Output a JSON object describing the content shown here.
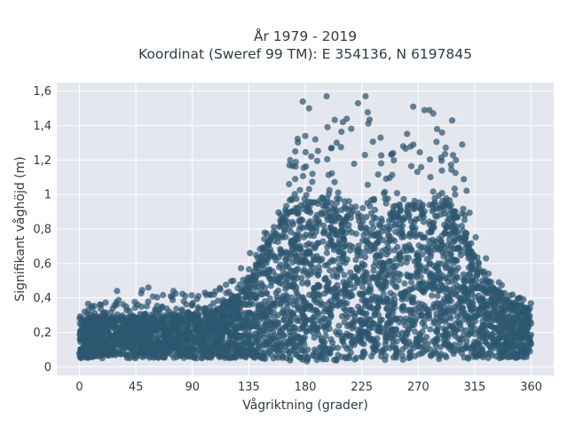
{
  "chart_data": {
    "type": "scatter",
    "title_line1": "År 1979 - 2019",
    "title_line2": "Koordinat (Sweref 99 TM): E 354136, N 6197845",
    "xlabel": "Vågriktning (grader)",
    "ylabel": "Signifikant våghöjd (m)",
    "xlim": [
      -18,
      378
    ],
    "ylim": [
      -0.05,
      1.65
    ],
    "x_ticks": [
      0,
      45,
      90,
      135,
      180,
      225,
      270,
      315,
      360
    ],
    "x_tick_labels": [
      "0",
      "45",
      "90",
      "135",
      "180",
      "225",
      "270",
      "315",
      "360"
    ],
    "y_ticks": [
      0,
      0.2,
      0.4,
      0.6,
      0.8,
      1.0,
      1.2,
      1.4,
      1.6
    ],
    "y_tick_labels": [
      "0",
      "0,2",
      "0,4",
      "0,6",
      "0,8",
      "1",
      "1,2",
      "1,4",
      "1,6"
    ],
    "grid": true,
    "marker_color": "#2e5870",
    "plot_background": "#e5e7ef",
    "envelope": {
      "direction": [
        0,
        20,
        45,
        60,
        90,
        110,
        125,
        135,
        150,
        165,
        180,
        195,
        210,
        225,
        240,
        255,
        270,
        285,
        300,
        315,
        330,
        345,
        360
      ],
      "lower": [
        0.05,
        0.05,
        0.05,
        0.05,
        0.05,
        0.05,
        0.05,
        0.05,
        0.04,
        0.03,
        0.03,
        0.03,
        0.04,
        0.04,
        0.04,
        0.04,
        0.04,
        0.04,
        0.04,
        0.05,
        0.05,
        0.05,
        0.06
      ],
      "dense_upper": [
        0.28,
        0.28,
        0.29,
        0.29,
        0.3,
        0.33,
        0.4,
        0.5,
        0.7,
        0.88,
        0.95,
        0.96,
        0.93,
        0.88,
        0.87,
        0.9,
        0.95,
        0.98,
        0.88,
        0.62,
        0.45,
        0.36,
        0.34
      ],
      "max": [
        0.36,
        0.38,
        0.45,
        0.46,
        0.42,
        0.45,
        0.52,
        0.67,
        0.82,
        1.2,
        1.54,
        1.57,
        1.42,
        1.57,
        1.36,
        1.4,
        1.51,
        1.38,
        1.3,
        0.82,
        0.62,
        0.42,
        0.38
      ]
    },
    "outliers": [
      {
        "x": 178,
        "y": 1.54
      },
      {
        "x": 180,
        "y": 1.34
      },
      {
        "x": 183,
        "y": 1.5
      },
      {
        "x": 197,
        "y": 1.57
      },
      {
        "x": 210,
        "y": 1.42
      },
      {
        "x": 213,
        "y": 1.44
      },
      {
        "x": 222,
        "y": 1.53
      },
      {
        "x": 228,
        "y": 1.57
      },
      {
        "x": 266,
        "y": 1.51
      },
      {
        "x": 275,
        "y": 1.49
      },
      {
        "x": 279,
        "y": 1.49
      },
      {
        "x": 282,
        "y": 1.47
      },
      {
        "x": 285,
        "y": 1.38
      },
      {
        "x": 289,
        "y": 1.36
      },
      {
        "x": 297,
        "y": 1.43
      },
      {
        "x": 305,
        "y": 1.29
      },
      {
        "x": 168,
        "y": 1.2
      },
      {
        "x": 172,
        "y": 1.25
      },
      {
        "x": 188,
        "y": 1.32
      },
      {
        "x": 205,
        "y": 1.3
      },
      {
        "x": 240,
        "y": 1.33
      },
      {
        "x": 250,
        "y": 1.24
      },
      {
        "x": 258,
        "y": 1.28
      },
      {
        "x": 300,
        "y": 1.2
      },
      {
        "x": 30,
        "y": 0.44
      },
      {
        "x": 55,
        "y": 0.46
      },
      {
        "x": 100,
        "y": 0.43
      },
      {
        "x": 75,
        "y": 0.44
      }
    ]
  }
}
